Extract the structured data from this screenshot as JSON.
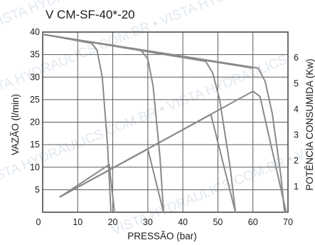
{
  "chart_data": {
    "type": "line",
    "title": "V CM-SF-40*-20",
    "xlabel": "PRESSÃO (bar)",
    "ylabel": "VAZÃO (l/min)",
    "y2label": "POTÊNCIA CONSUMIDA (Kw)",
    "xlim": [
      0,
      70
    ],
    "ylim": [
      0,
      40
    ],
    "y2lim": [
      0,
      7
    ],
    "x_ticks": [
      0,
      10,
      20,
      30,
      40,
      50,
      60,
      70
    ],
    "y_ticks": [
      5,
      10,
      15,
      20,
      25,
      30,
      35,
      40
    ],
    "y2_ticks": [
      1,
      2,
      3,
      4,
      5,
      6
    ],
    "grid": true,
    "watermark": "VISTA HYDRAULICS.COM.BR • VISTA HYDRAULICS",
    "flow_line": {
      "x": [
        0,
        60
      ],
      "y": [
        39.5,
        32
      ]
    },
    "flow_series": [
      {
        "x": [
          0,
          14,
          15.5,
          17,
          18.5,
          19.5
        ],
        "y": [
          39.5,
          37.5,
          36,
          30,
          15,
          0
        ]
      },
      {
        "x": [
          0,
          28,
          30,
          31.5,
          33.5,
          34.5
        ],
        "y": [
          39.5,
          36,
          34,
          28,
          12,
          0
        ]
      },
      {
        "x": [
          0,
          46.5,
          48.5,
          50.5,
          53.5,
          55
        ],
        "y": [
          39.5,
          33.5,
          31,
          25,
          10,
          0
        ]
      },
      {
        "x": [
          0,
          61.5,
          63.5,
          65.5,
          68,
          69
        ],
        "y": [
          39.5,
          32,
          29,
          22,
          8,
          0
        ]
      }
    ],
    "power_series": [
      {
        "x": [
          5,
          19,
          20.5
        ],
        "y": [
          0.6,
          1.85,
          0
        ]
      },
      {
        "x": [
          5,
          30,
          34.5
        ],
        "y": [
          0.6,
          2.45,
          0
        ]
      },
      {
        "x": [
          5,
          48,
          55
        ],
        "y": [
          0.6,
          3.8,
          0
        ]
      },
      {
        "x": [
          5,
          60,
          62,
          69.5
        ],
        "y": [
          0.6,
          4.7,
          4.5,
          0
        ]
      }
    ]
  }
}
